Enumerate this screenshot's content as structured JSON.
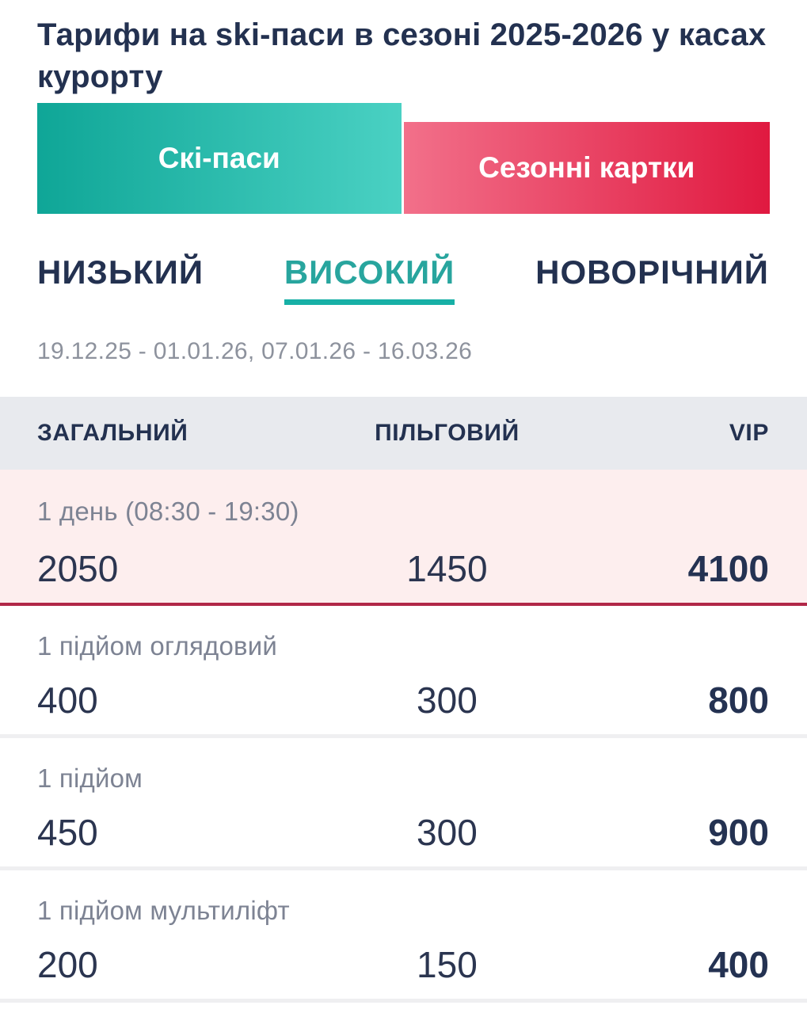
{
  "title": "Тарифи на ski-паси в сезоні 2025-2026 у касах курорту",
  "top_tabs": {
    "ski_passes": {
      "label": "Скі-паси",
      "active": true
    },
    "season_cards": {
      "label": "Сезонні картки",
      "active": false
    }
  },
  "season_tabs": {
    "low": {
      "label": "НИЗЬКИЙ",
      "active": false
    },
    "high": {
      "label": "ВИСОКИЙ",
      "active": true
    },
    "new_year": {
      "label": "НОВОРІЧНИЙ",
      "active": false
    }
  },
  "date_range": "19.12.25 - 01.01.26, 07.01.26 - 16.03.26",
  "table": {
    "columns": {
      "general": "ЗАГАЛЬНИЙ",
      "discount": "ПІЛЬГОВИЙ",
      "vip": "VIP"
    },
    "rows": [
      {
        "label": "1 день (08:30 - 19:30)",
        "general": "2050",
        "discount": "1450",
        "vip": "4100",
        "highlighted": true
      },
      {
        "label": "1 підйом оглядовий",
        "general": "400",
        "discount": "300",
        "vip": "800",
        "highlighted": false
      },
      {
        "label": "1 підйом",
        "general": "450",
        "discount": "300",
        "vip": "900",
        "highlighted": false
      },
      {
        "label": "1 підйом мультиліфт",
        "general": "200",
        "discount": "150",
        "vip": "400",
        "highlighted": false
      }
    ]
  },
  "colors": {
    "navy_text": "#233150",
    "teal_accent": "#28a59e",
    "teal_underline": "#17b0a6",
    "teal_gradient_start": "#0fa697",
    "teal_gradient_end": "#4ad1c3",
    "red_gradient_start": "#f2708a",
    "red_gradient_end": "#e01940",
    "header_bg": "#e8eaee",
    "highlight_row_bg": "#fdeeee",
    "highlight_row_border": "#b12747",
    "label_gray": "#7d8393",
    "date_gray": "#8d929d"
  }
}
